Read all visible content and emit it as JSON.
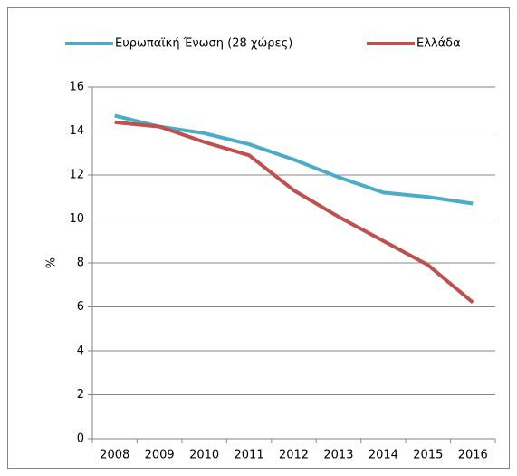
{
  "chart_data": {
    "type": "line",
    "y_label": "%",
    "categories": [
      "2008",
      "2009",
      "2010",
      "2011",
      "2012",
      "2013",
      "2014",
      "2015",
      "2016"
    ],
    "series": [
      {
        "name": "Ευρωπαϊκή Ένωση (28 χώρες)",
        "color": "#4bacc6",
        "values": [
          14.7,
          14.2,
          13.9,
          13.4,
          12.7,
          11.9,
          11.2,
          11.0,
          10.7
        ]
      },
      {
        "name": "Ελλάδα",
        "color": "#c0504d",
        "values": [
          14.4,
          14.2,
          13.5,
          12.9,
          11.3,
          10.1,
          9.0,
          7.9,
          6.2
        ]
      }
    ],
    "ylim": [
      0,
      16
    ],
    "yticks": [
      0,
      2,
      4,
      6,
      8,
      10,
      12,
      14,
      16
    ],
    "grid": true,
    "legend": "top"
  }
}
